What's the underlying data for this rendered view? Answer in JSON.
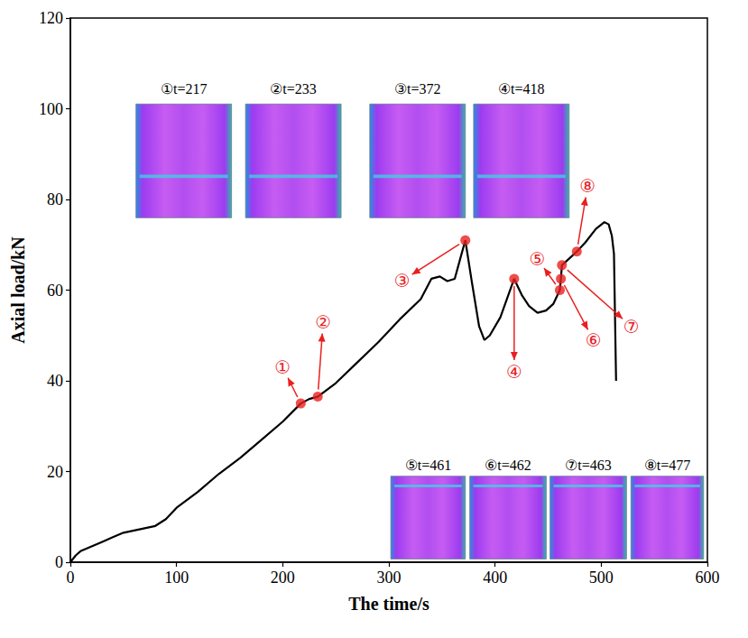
{
  "chart_data": {
    "type": "line",
    "xlabel": "The time/s",
    "ylabel": "Axial load/kN",
    "x": [
      0,
      5,
      10,
      20,
      30,
      40,
      50,
      60,
      70,
      80,
      90,
      100,
      120,
      140,
      160,
      180,
      200,
      217,
      225,
      233,
      250,
      270,
      290,
      310,
      330,
      340,
      348,
      355,
      362,
      372,
      378,
      385,
      390,
      395,
      405,
      418,
      425,
      432,
      440,
      448,
      455,
      461,
      462,
      463,
      470,
      477,
      485,
      495,
      503,
      507,
      510,
      512,
      514
    ],
    "values": [
      0,
      1.5,
      2.5,
      3.5,
      4.5,
      5.5,
      6.5,
      7,
      7.5,
      8,
      9.5,
      12,
      15.5,
      19.5,
      23,
      27,
      31,
      35,
      36,
      36.5,
      39.5,
      44,
      48.5,
      53.5,
      58,
      62.5,
      63,
      62,
      62.5,
      71,
      62,
      52,
      49,
      50,
      54,
      62.5,
      59,
      56.5,
      55,
      55.5,
      57,
      60,
      62.5,
      65.5,
      67,
      68.5,
      70.5,
      73.5,
      75,
      74.5,
      72,
      68,
      40
    ],
    "color": "#000000",
    "xlim": [
      0,
      600
    ],
    "xticks": [
      0,
      100,
      200,
      300,
      400,
      500,
      600
    ],
    "ylim": [
      0,
      120
    ],
    "yticks": [
      0,
      20,
      40,
      60,
      80,
      100,
      120
    ],
    "grid": false,
    "annotations": [
      {
        "label": "①",
        "x": 217,
        "y": 35,
        "color": "#e8201e"
      },
      {
        "label": "②",
        "x": 233,
        "y": 36.5,
        "color": "#e8201e"
      },
      {
        "label": "③",
        "x": 372,
        "y": 71,
        "color": "#e8201e"
      },
      {
        "label": "④",
        "x": 418,
        "y": 62.5,
        "color": "#e8201e"
      },
      {
        "label": "⑤",
        "x": 461,
        "y": 60,
        "color": "#e8201e"
      },
      {
        "label": "⑥",
        "x": 462,
        "y": 62.5,
        "color": "#e8201e"
      },
      {
        "label": "⑦",
        "x": 463,
        "y": 65.5,
        "color": "#e8201e"
      },
      {
        "label": "⑧",
        "x": 477,
        "y": 68.5,
        "color": "#e8201e"
      }
    ],
    "insets": [
      {
        "label": "①t=217"
      },
      {
        "label": "②t=233"
      },
      {
        "label": "③t=372"
      },
      {
        "label": "④t=418"
      },
      {
        "label": "⑤t=461"
      },
      {
        "label": "⑥t=462"
      },
      {
        "label": "⑦t=463"
      },
      {
        "label": "⑧t=477"
      }
    ]
  }
}
